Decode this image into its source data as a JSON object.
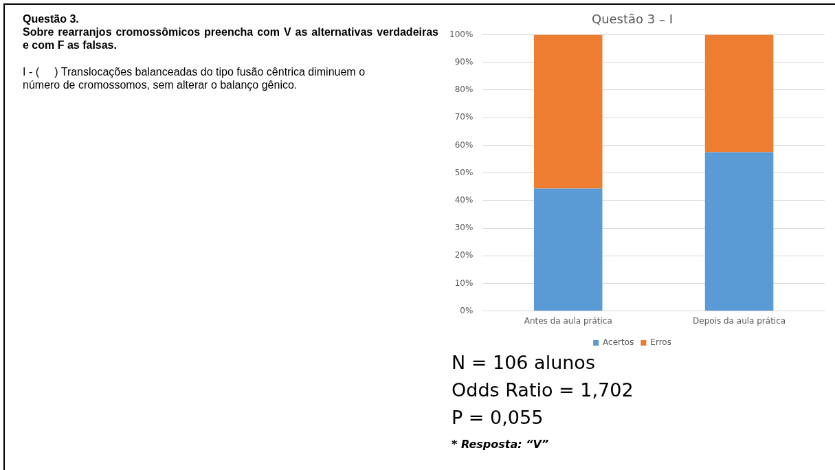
{
  "chart_data": {
    "type": "bar",
    "title": "Questão 3 – I",
    "categories": [
      "Antes da aula prática",
      "Depois da aula prática"
    ],
    "stacked": true,
    "series": [
      {
        "name": "Acertos",
        "color": "#5b9bd5",
        "values": [
          44.3,
          57.5
        ]
      },
      {
        "name": "Erros",
        "color": "#ed7d31",
        "values": [
          55.7,
          42.5
        ]
      }
    ],
    "ylim": [
      0,
      100
    ],
    "yticks": [
      {
        "value": 0,
        "label": "0%"
      },
      {
        "value": 10,
        "label": "10%"
      },
      {
        "value": 20,
        "label": "20%"
      },
      {
        "value": 30,
        "label": "30%"
      },
      {
        "value": 40,
        "label": "40%"
      },
      {
        "value": 50,
        "label": "50%"
      },
      {
        "value": 60,
        "label": "60%"
      },
      {
        "value": 70,
        "label": "70%"
      },
      {
        "value": 80,
        "label": "80%"
      },
      {
        "value": 90,
        "label": "90%"
      },
      {
        "value": 100,
        "label": "100%"
      }
    ],
    "grid": "y",
    "legend": "bottom",
    "annotations": [
      "Questão 3.",
      "Sobre rearranjos cromossômicos preencha com V as alternativas verdadeiras e com F as falsas.",
      "I - (     ) Translocações balanceadas do tipo fusão cêntrica diminuem o número de cromossomos, sem alterar o balanço gênico.",
      "N = 106 alunos",
      "Odds Ratio = 1,702",
      "P = 0,055",
      "* Resposta: “V”"
    ]
  }
}
